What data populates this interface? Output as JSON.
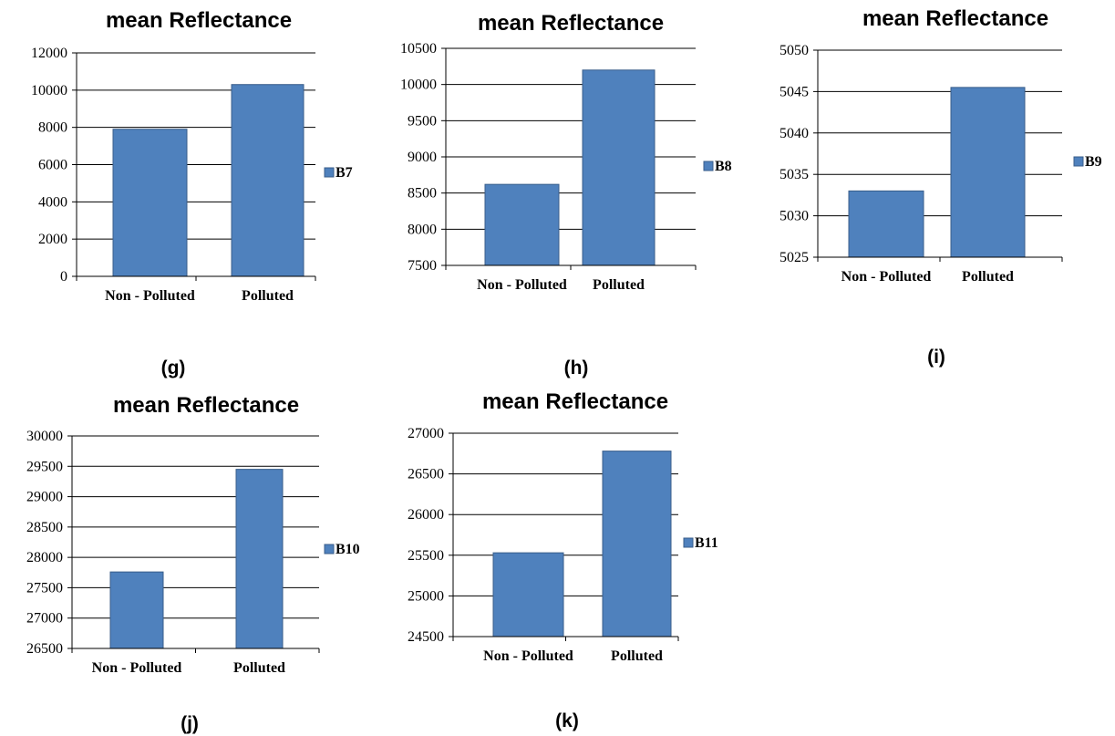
{
  "chart_data": [
    {
      "type": "bar",
      "title": "mean Reflectance",
      "caption": "(g)",
      "categories": [
        "Non - Polluted",
        "Polluted"
      ],
      "series": [
        {
          "name": "B7",
          "values": [
            7900,
            10300
          ]
        }
      ],
      "ylim": [
        0,
        12000
      ],
      "yticks": [
        0,
        2000,
        4000,
        6000,
        8000,
        10000,
        12000
      ],
      "grid": true,
      "legend": "right",
      "color": "#4f81bd"
    },
    {
      "type": "bar",
      "title": "mean Reflectance",
      "caption": "(h)",
      "categories": [
        "Non - Polluted",
        "Polluted"
      ],
      "series": [
        {
          "name": "B8",
          "values": [
            8620,
            10200
          ]
        }
      ],
      "ylim": [
        7500,
        10500
      ],
      "yticks": [
        7500,
        8000,
        8500,
        9000,
        9500,
        10000,
        10500
      ],
      "grid": true,
      "legend": "right",
      "color": "#4f81bd"
    },
    {
      "type": "bar",
      "title": "mean Reflectance",
      "caption": "(i)",
      "categories": [
        "Non - Polluted",
        "Polluted"
      ],
      "series": [
        {
          "name": "B9",
          "values": [
            5033,
            5045.5
          ]
        }
      ],
      "ylim": [
        5025,
        5050
      ],
      "yticks": [
        5025,
        5030,
        5035,
        5040,
        5045,
        5050
      ],
      "grid": true,
      "legend": "right",
      "color": "#4f81bd"
    },
    {
      "type": "bar",
      "title": "mean Reflectance",
      "caption": "(j)",
      "categories": [
        "Non - Polluted",
        "Polluted"
      ],
      "series": [
        {
          "name": "B10",
          "values": [
            27760,
            29450
          ]
        }
      ],
      "ylim": [
        26500,
        30000
      ],
      "yticks": [
        26500,
        27000,
        27500,
        28000,
        28500,
        29000,
        29500,
        30000
      ],
      "grid": true,
      "legend": "right",
      "color": "#4f81bd"
    },
    {
      "type": "bar",
      "title": "mean Reflectance",
      "caption": "(k)",
      "categories": [
        "Non - Polluted",
        "Polluted"
      ],
      "series": [
        {
          "name": "B11",
          "values": [
            25530,
            26780
          ]
        }
      ],
      "ylim": [
        24500,
        27000
      ],
      "yticks": [
        24500,
        25000,
        25500,
        26000,
        26500,
        27000
      ],
      "grid": true,
      "legend": "right",
      "color": "#4f81bd"
    }
  ]
}
